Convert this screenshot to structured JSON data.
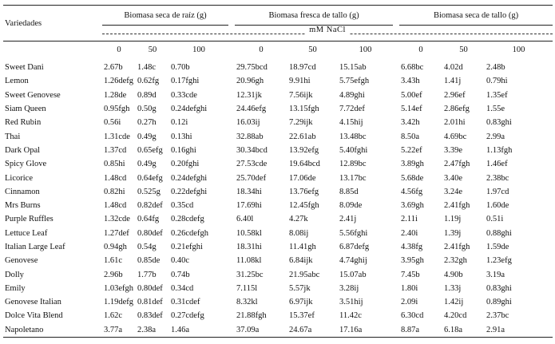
{
  "headers": {
    "varieties": "Variedades",
    "groups": [
      "Biomasa seca de raíz (g)",
      "Biomasa fresca de tallo (g)",
      "Biomasa seca de tallo (g)"
    ],
    "unit": "mM NaCl",
    "concentrations": [
      "0",
      "50",
      "100"
    ]
  },
  "rows": [
    {
      "name": "Sweet Dani",
      "values": [
        "2.67b",
        "1.48c",
        "0.70b",
        "29.75bcd",
        "18.97cd",
        "15.15ab",
        "6.68bc",
        "4.02d",
        "2.48b"
      ]
    },
    {
      "name": "Lemon",
      "values": [
        "1.26defg",
        "0.62fg",
        "0.17fghi",
        "20.96gh",
        "9.91hi",
        "5.75efgh",
        "3.43h",
        "1.41j",
        "0.79hi"
      ]
    },
    {
      "name": "Sweet Genovese",
      "values": [
        "1.28de",
        "0.89d",
        "0.33cde",
        "12.31jk",
        "7.56ijk",
        "4.89ghi",
        "5.00ef",
        "2.96ef",
        "1.35ef"
      ]
    },
    {
      "name": "Siam Queen",
      "values": [
        "0.95fgh",
        "0.50g",
        "0.24defghi",
        "24.46efg",
        "13.15fgh",
        "7.72def",
        "5.14ef",
        "2.86efg",
        "1.55e"
      ]
    },
    {
      "name": "Red Rubin",
      "values": [
        "0.56i",
        "0.27h",
        "0.12i",
        "16.03ij",
        "7.29ijk",
        "4.15hij",
        "3.42h",
        "2.01hi",
        "0.83ghi"
      ]
    },
    {
      "name": "Thai",
      "values": [
        "1.31cde",
        "0.49g",
        "0.13hi",
        "32.88ab",
        "22.61ab",
        "13.48bc",
        "8.50a",
        "4.69bc",
        "2.99a"
      ]
    },
    {
      "name": "Dark Opal",
      "values": [
        "1.37cd",
        "0.65efg",
        "0.16ghi",
        "30.34bcd",
        "13.92efg",
        "5.40fghi",
        "5.22ef",
        "3.39e",
        "1.13fgh"
      ]
    },
    {
      "name": "Spicy Glove",
      "values": [
        "0.85hi",
        "0.49g",
        "0.20fghi",
        "27.53cde",
        "19.64bcd",
        "12.89bc",
        "3.89gh",
        "2.47fgh",
        "1.46ef"
      ]
    },
    {
      "name": "Licorice",
      "values": [
        "1.48cd",
        "0.64efg",
        "0.24defghi",
        "25.70def",
        "17.06de",
        "13.17bc",
        "5.68de",
        "3.40e",
        "2.38bc"
      ]
    },
    {
      "name": "Cinnamon",
      "values": [
        "0.82hi",
        "0.525g",
        "0.22defghi",
        "18.34hi",
        "13.76efg",
        "8.85d",
        "4.56fg",
        "3.24e",
        "1.97cd"
      ]
    },
    {
      "name": "Mrs Burns",
      "values": [
        "1.48cd",
        "0.82def",
        "0.35cd",
        "17.69hi",
        "12.45fgh",
        "8.09de",
        "3.69gh",
        "2.41fgh",
        "1.60de"
      ]
    },
    {
      "name": "Purple Ruffles",
      "values": [
        "1.32cde",
        "0.64fg",
        "0.28cdefg",
        "6.40l",
        "4.27k",
        "2.41j",
        "2.11i",
        "1.19j",
        "0.51i"
      ]
    },
    {
      "name": "Lettuce Leaf",
      "values": [
        "1.27def",
        "0.80def",
        "0.26cdefgh",
        "10.58kl",
        "8.08ij",
        "5.56fghi",
        "2.40i",
        "1.39j",
        "0.88ghi"
      ]
    },
    {
      "name": "Italian Large Leaf",
      "values": [
        "0.94gh",
        "0.54g",
        "0.21efghi",
        "18.31hi",
        "11.41gh",
        "6.87defg",
        "4.38fg",
        "2.41fgh",
        "1.59de"
      ]
    },
    {
      "name": "Genovese",
      "values": [
        "1.61c",
        "0.85de",
        "0.40c",
        "11.08kl",
        "6.84ijk",
        "4.74ghij",
        "3.95gh",
        "2.32gh",
        "1.23efg"
      ]
    },
    {
      "name": "Dolly",
      "values": [
        "2.96b",
        "1.77b",
        "0.74b",
        "31.25bc",
        "21.95abc",
        "15.07ab",
        "7.45b",
        "4.90b",
        "3.19a"
      ]
    },
    {
      "name": "Emily",
      "values": [
        "1.03efgh",
        "0.80def",
        "0.34cd",
        "7.115l",
        "5.57jk",
        "3.28ij",
        "1.80i",
        "1.33j",
        "0.83ghi"
      ]
    },
    {
      "name": "Genovese Italian",
      "values": [
        "1.19defg",
        "0.81def",
        "0.31cdef",
        "8.32kl",
        "6.97ijk",
        "3.51hij",
        "2.09i",
        "1.42ij",
        "0.89ghi"
      ]
    },
    {
      "name": "Dolce Vita Blend",
      "values": [
        "1.62c",
        "0.83def",
        "0.27cdefg",
        "21.88fgh",
        "15.37ef",
        "11.42c",
        "6.30cd",
        "4.20cd",
        "2.37bc"
      ]
    },
    {
      "name": "Napoletano",
      "values": [
        "3.77a",
        "2.38a",
        "1.46a",
        "37.09a",
        "24.67a",
        "17.16a",
        "8.87a",
        "6.18a",
        "2.91a"
      ]
    }
  ]
}
